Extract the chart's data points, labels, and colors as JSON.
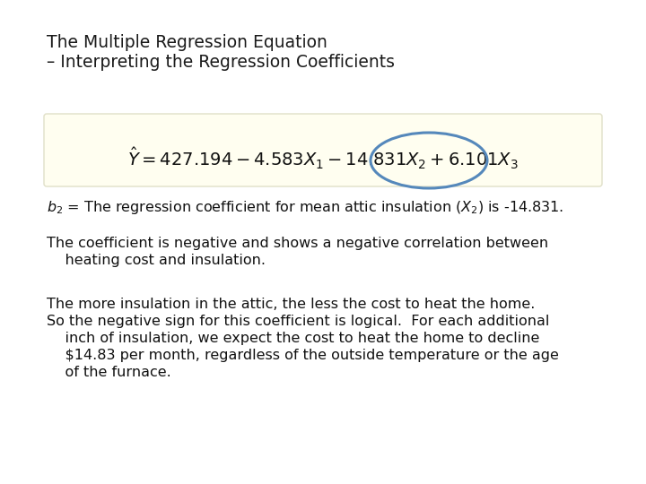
{
  "title_line1": "The Multiple Regression Equation",
  "title_line2": "– Interpreting the Regression Coefficients",
  "background_color": "#ffffff",
  "equation_box_color": "#fffef0",
  "equation_box_border": "#e0e0c8",
  "circle_color": "#5588bb",
  "title_fontsize": 13.5,
  "body_fontsize": 11.5,
  "eq_fontsize": 14,
  "para1_line1": "The coefficient is negative and shows a negative correlation between",
  "para1_line2": "    heating cost and insulation.",
  "para2_line1": "The more insulation in the attic, the less the cost to heat the home.",
  "para2_line2": "So the negative sign for this coefficient is logical.  For each additional",
  "para2_line3": "    inch of insulation, we expect the cost to heat the home to decline",
  "para2_line4": "    $14.83 per month, regardless of the outside temperature or the age",
  "para2_line5": "    of the furnace."
}
